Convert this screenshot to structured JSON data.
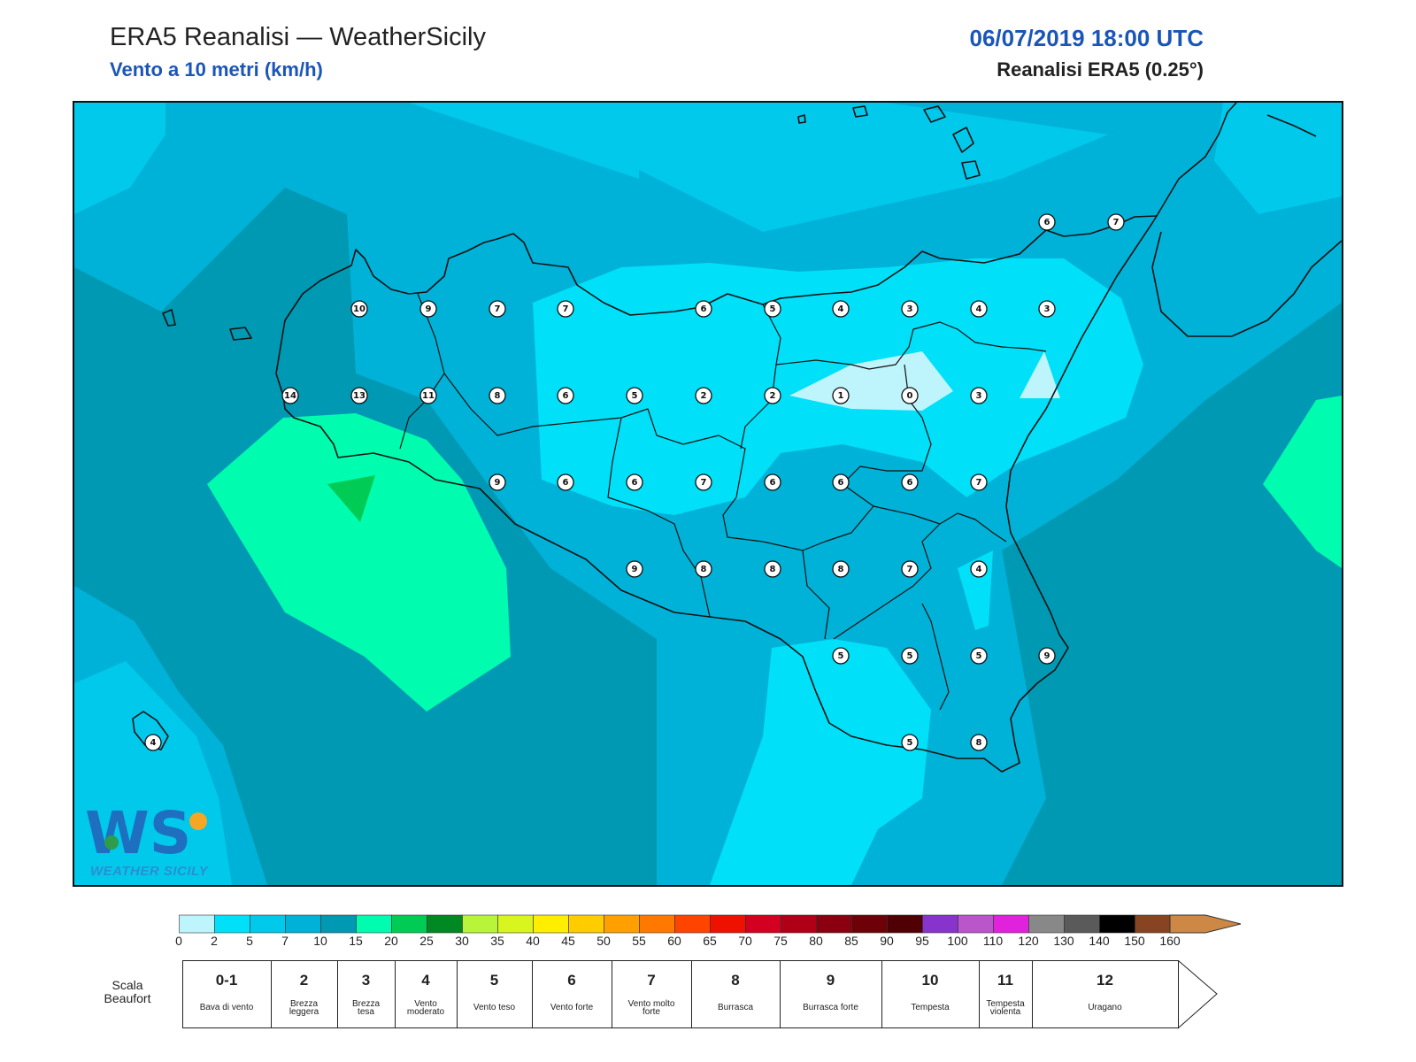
{
  "header": {
    "title": "ERA5 Reanalisi — WeatherSicily",
    "subtitle": "Vento a 10 metri (km/h)",
    "datetime": "06/07/2019 18:00 UTC",
    "source": "Reanalisi ERA5 (0.25°)"
  },
  "logo": {
    "letters": "WS",
    "caption": "WEATHER SICILY"
  },
  "colors": {
    "wind_0_2": "#bef4fb",
    "wind_2_5": "#00e0f8",
    "wind_5_7": "#00c9ec",
    "wind_7_10": "#00b2d8",
    "wind_10_15": "#0099b4",
    "wind_15_20": "#00fcae",
    "wind_20_25": "#00cc55",
    "land_outline": "#111111"
  },
  "wind_values": [
    "6",
    "7",
    "10",
    "9",
    "7",
    "7",
    "6",
    "5",
    "4",
    "3",
    "4",
    "3",
    "14",
    "13",
    "11",
    "8",
    "6",
    "5",
    "2",
    "2",
    "1",
    "0",
    "3",
    "9",
    "6",
    "6",
    "7",
    "6",
    "6",
    "6",
    "7",
    "9",
    "8",
    "8",
    "8",
    "7",
    "4",
    "5",
    "5",
    "5",
    "9",
    "5",
    "8",
    "4"
  ],
  "scale": {
    "ticks": [
      "0",
      "2",
      "5",
      "7",
      "10",
      "15",
      "20",
      "25",
      "30",
      "35",
      "40",
      "45",
      "50",
      "55",
      "60",
      "65",
      "70",
      "75",
      "80",
      "85",
      "90",
      "95",
      "100",
      "110",
      "120",
      "130",
      "140",
      "150",
      "160"
    ],
    "colors": [
      "#bef4fb",
      "#00e0f8",
      "#00c9ec",
      "#00b2d8",
      "#0099b4",
      "#00fcae",
      "#00cc55",
      "#008822",
      "#b8f53a",
      "#d8f520",
      "#ffee00",
      "#ffcc00",
      "#ffa000",
      "#ff7800",
      "#ff4400",
      "#ee1100",
      "#d40022",
      "#b00018",
      "#8a0010",
      "#6e0008",
      "#500005",
      "#8833cc",
      "#bb55cc",
      "#e022dd",
      "#888888",
      "#5a5a5a",
      "#000000",
      "#884422",
      "#cc8844"
    ]
  },
  "beaufort": {
    "label": "Scala Beaufort",
    "items": [
      {
        "num": "0-1",
        "desc": "Bava di vento"
      },
      {
        "num": "2",
        "desc": "Brezza leggera"
      },
      {
        "num": "3",
        "desc": "Brezza tesa"
      },
      {
        "num": "4",
        "desc": "Vento moderato"
      },
      {
        "num": "5",
        "desc": "Vento teso"
      },
      {
        "num": "6",
        "desc": "Vento forte"
      },
      {
        "num": "7",
        "desc": "Vento molto forte"
      },
      {
        "num": "8",
        "desc": "Burrasca"
      },
      {
        "num": "9",
        "desc": "Burrasca forte"
      },
      {
        "num": "10",
        "desc": "Tempesta"
      },
      {
        "num": "11",
        "desc": "Tempesta violenta"
      },
      {
        "num": "12",
        "desc": "Uragano"
      }
    ]
  }
}
